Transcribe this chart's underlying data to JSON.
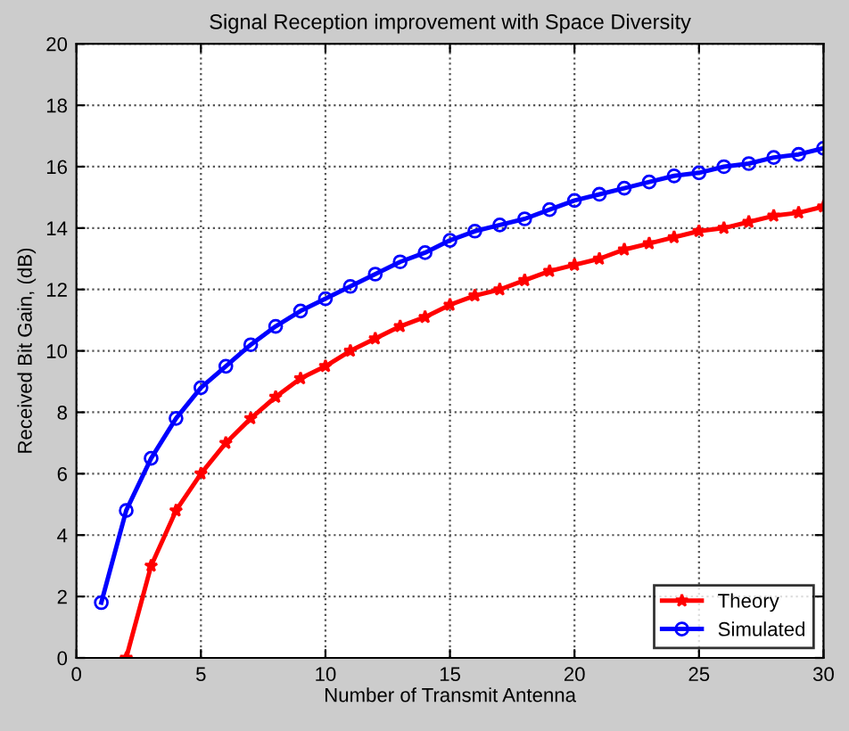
{
  "chart_data": {
    "type": "line",
    "title": "Signal Reception improvement with Space Diversity",
    "xlabel": "Number of Transmit Antenna",
    "ylabel": "Received Bit Gain, (dB)",
    "xlim": [
      0,
      30
    ],
    "xticks": [
      0,
      5,
      10,
      15,
      20,
      25,
      30
    ],
    "ylim": [
      0,
      20
    ],
    "yticks": [
      0,
      2,
      4,
      6,
      8,
      10,
      12,
      14,
      16,
      18,
      20
    ],
    "grid": true,
    "legend": "bottom right",
    "line_style": "solid",
    "series": [
      {
        "name": "Theory",
        "color": "#ff0000",
        "marker": "star",
        "x": [
          2,
          3,
          4,
          5,
          6,
          7,
          8,
          9,
          10,
          11,
          12,
          13,
          14,
          15,
          16,
          17,
          18,
          19,
          20,
          21,
          22,
          23,
          24,
          25,
          26,
          27,
          28,
          29,
          30
        ],
        "values": [
          0,
          3,
          4.8,
          6,
          7,
          7.8,
          8.5,
          9.1,
          9.5,
          10,
          10.4,
          10.8,
          11.1,
          11.5,
          11.8,
          12.0,
          12.3,
          12.6,
          12.8,
          13.0,
          13.3,
          13.5,
          13.7,
          13.9,
          14.0,
          14.2,
          14.4,
          14.5,
          14.7
        ]
      },
      {
        "name": "Simulated",
        "color": "#0000ff",
        "marker": "circle",
        "x": [
          1,
          2,
          3,
          4,
          5,
          6,
          7,
          8,
          9,
          10,
          11,
          12,
          13,
          14,
          15,
          16,
          17,
          18,
          19,
          20,
          21,
          22,
          23,
          24,
          25,
          26,
          27,
          28,
          29,
          30
        ],
        "values": [
          1.8,
          4.8,
          6.5,
          7.8,
          8.8,
          9.5,
          10.2,
          10.8,
          11.3,
          11.7,
          12.1,
          12.5,
          12.9,
          13.2,
          13.6,
          13.9,
          14.1,
          14.3,
          14.6,
          14.9,
          15.1,
          15.3,
          15.5,
          15.7,
          15.8,
          16.0,
          16.1,
          16.3,
          16.4,
          16.6
        ]
      }
    ]
  }
}
